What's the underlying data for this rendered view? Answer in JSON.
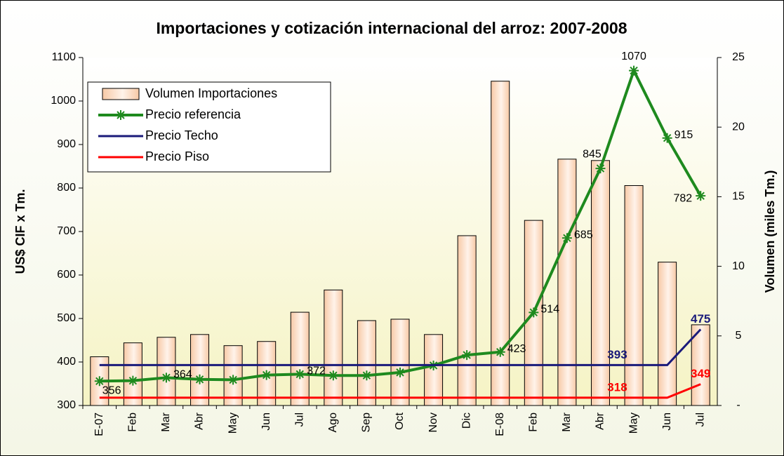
{
  "chart_data": {
    "type": "combo",
    "title": "Importaciones y cotización internacional del arroz: 2007-2008",
    "y_label": "US$ CIF x Tm.",
    "y2_label": "Volumen (miles Tm.)",
    "categories": [
      "E-07",
      "Feb",
      "Mar",
      "Abr",
      "May",
      "Jun",
      "Jul",
      "Ago",
      "Sep",
      "Oct",
      "Nov",
      "Dic",
      "E-08",
      "Feb",
      "Mar",
      "Abr",
      "May",
      "Jun",
      "Jul"
    ],
    "ylim": [
      300,
      1100
    ],
    "yticks": [
      300,
      400,
      500,
      600,
      700,
      800,
      900,
      1000,
      1100
    ],
    "y2lim": [
      0,
      25
    ],
    "y2ticks": [
      {
        "value": 0,
        "label": "-"
      },
      5,
      10,
      15,
      20,
      25
    ],
    "legend": "upper left",
    "series": [
      {
        "name": "Volumen Importaciones",
        "type": "bar",
        "axis": "y2",
        "color": "#f7c9a6",
        "values": [
          3.5,
          4.5,
          4.9,
          5.1,
          4.3,
          4.6,
          6.7,
          8.3,
          6.1,
          6.2,
          5.1,
          12.2,
          23.3,
          13.3,
          17.7,
          17.6,
          15.8,
          10.3,
          5.8
        ]
      },
      {
        "name": "Precio referencia",
        "type": "line",
        "color": "#1e8a1e",
        "values": [
          356,
          357,
          364,
          360,
          359,
          370,
          372,
          369,
          369,
          376,
          392,
          416,
          423,
          514,
          685,
          845,
          1070,
          915,
          782
        ],
        "value_labels": [
          "356",
          null,
          "364",
          null,
          null,
          null,
          "372",
          null,
          null,
          null,
          null,
          null,
          "423",
          "514",
          "685",
          "845",
          "1070",
          "915",
          "782"
        ]
      },
      {
        "name": "Precio Techo",
        "type": "line",
        "color": "#1a1a7a",
        "values": [
          393,
          393,
          393,
          393,
          393,
          393,
          393,
          393,
          393,
          393,
          393,
          393,
          393,
          393,
          393,
          393,
          393,
          393,
          475
        ],
        "value_labels": [
          null,
          null,
          null,
          null,
          null,
          null,
          null,
          null,
          null,
          null,
          null,
          null,
          null,
          null,
          null,
          "393",
          null,
          null,
          "475"
        ]
      },
      {
        "name": "Precio Piso",
        "type": "line",
        "color": "#ff0000",
        "values": [
          318,
          318,
          318,
          318,
          318,
          318,
          318,
          318,
          318,
          318,
          318,
          318,
          318,
          318,
          318,
          318,
          318,
          318,
          349
        ],
        "value_labels": [
          null,
          null,
          null,
          null,
          null,
          null,
          null,
          null,
          null,
          null,
          null,
          null,
          null,
          null,
          null,
          "318",
          null,
          null,
          "349"
        ]
      }
    ]
  }
}
